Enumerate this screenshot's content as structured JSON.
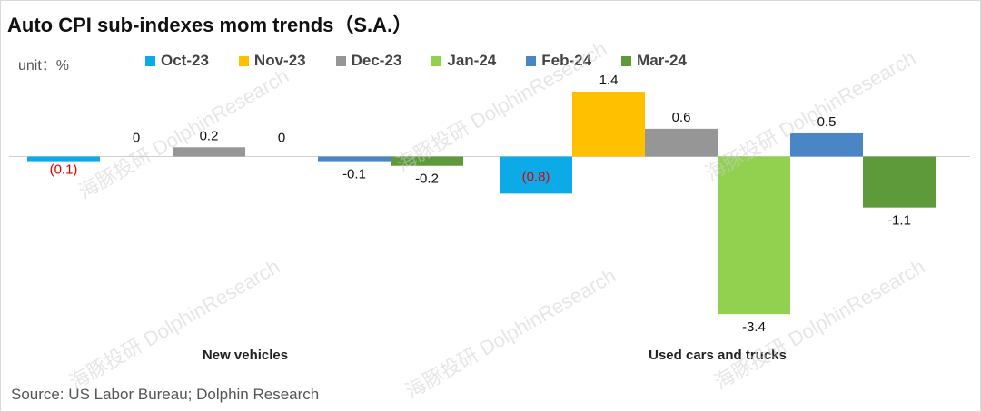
{
  "title": "Auto CPI sub-indexes mom trends（S.A.）",
  "unit": "unit：%",
  "source": "Source: US Labor Bureau; Dolphin Research",
  "watermark": "海豚投研 DolphinResearch",
  "chart_data": {
    "type": "bar",
    "categories": [
      "New vehicles",
      "Used cars and trucks"
    ],
    "series": [
      {
        "name": "Oct-23",
        "color": "#0cabe8",
        "values": [
          -0.1,
          -0.8
        ],
        "labels": [
          "(0.1)",
          "(0.8)"
        ],
        "label_color": "#e00000"
      },
      {
        "name": "Nov-23",
        "color": "#ffc000",
        "values": [
          0,
          1.4
        ],
        "labels": [
          "0",
          "1.4"
        ],
        "label_color": "#111111"
      },
      {
        "name": "Dec-23",
        "color": "#969696",
        "values": [
          0.2,
          0.6
        ],
        "labels": [
          "0.2",
          "0.6"
        ],
        "label_color": "#111111"
      },
      {
        "name": "Jan-24",
        "color": "#92d050",
        "values": [
          0,
          -3.4
        ],
        "labels": [
          "0",
          "-3.4"
        ],
        "label_color": "#111111"
      },
      {
        "name": "Feb-24",
        "color": "#4a86c5",
        "values": [
          -0.1,
          0.5
        ],
        "labels": [
          "-0.1",
          "0.5"
        ],
        "label_color": "#111111"
      },
      {
        "name": "Mar-24",
        "color": "#5e9a3a",
        "values": [
          -0.2,
          -1.1
        ],
        "labels": [
          "-0.2",
          "-1.1"
        ],
        "label_color": "#111111"
      }
    ],
    "ylim": [
      -3.6,
      1.55
    ],
    "grid": false,
    "legend": "top"
  }
}
